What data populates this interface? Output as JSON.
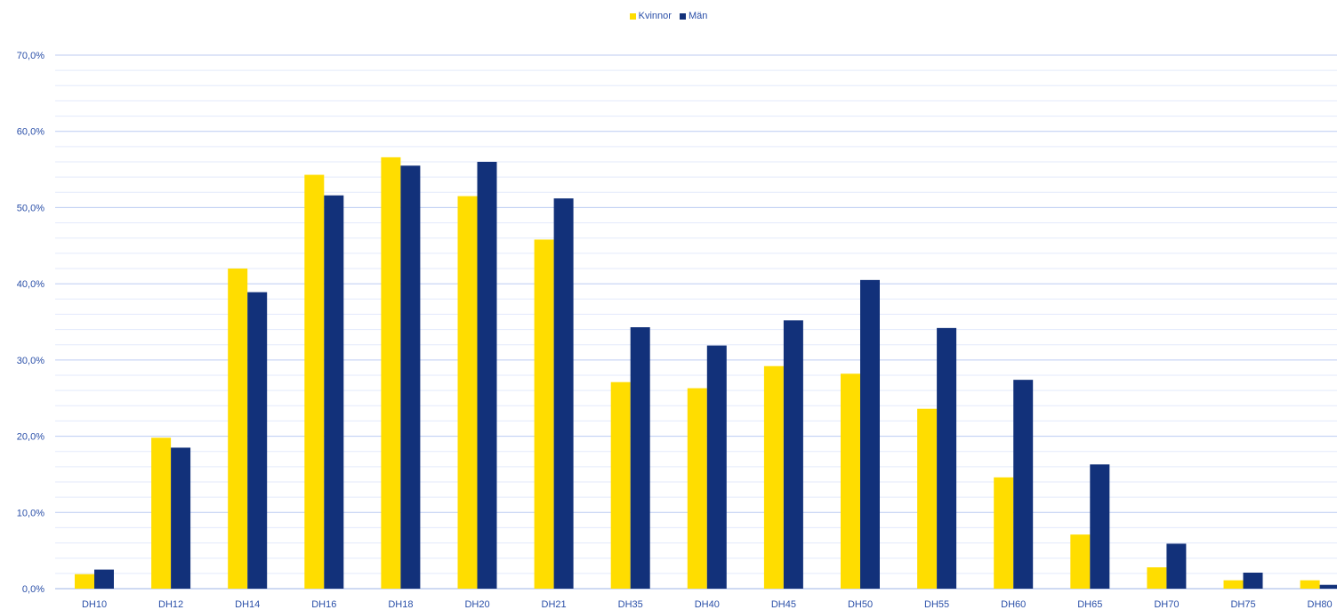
{
  "chart_data": {
    "type": "bar",
    "categories": [
      "DH10",
      "DH12",
      "DH14",
      "DH16",
      "DH18",
      "DH20",
      "DH21",
      "DH35",
      "DH40",
      "DH45",
      "DH50",
      "DH55",
      "DH60",
      "DH65",
      "DH70",
      "DH75",
      "DH80"
    ],
    "series": [
      {
        "name": "Kvinnor",
        "color": "#FFDD00",
        "values": [
          1.9,
          19.8,
          42.0,
          54.3,
          56.6,
          51.5,
          45.8,
          27.1,
          26.3,
          29.2,
          28.2,
          23.6,
          14.6,
          7.1,
          2.8,
          1.1,
          1.1
        ]
      },
      {
        "name": "Män",
        "color": "#12317A",
        "values": [
          2.5,
          18.5,
          38.9,
          51.6,
          55.5,
          56.0,
          51.2,
          34.3,
          31.9,
          35.2,
          40.5,
          34.2,
          27.4,
          16.3,
          5.9,
          2.1,
          0.5
        ]
      }
    ],
    "yticks": [
      "0,0%",
      "10,0%",
      "20,0%",
      "30,0%",
      "40,0%",
      "50,0%",
      "60,0%",
      "70,0%"
    ],
    "ylim": [
      0,
      70
    ],
    "grid": true,
    "legend_position": "top-center",
    "title": "",
    "xlabel": "",
    "ylabel": ""
  }
}
